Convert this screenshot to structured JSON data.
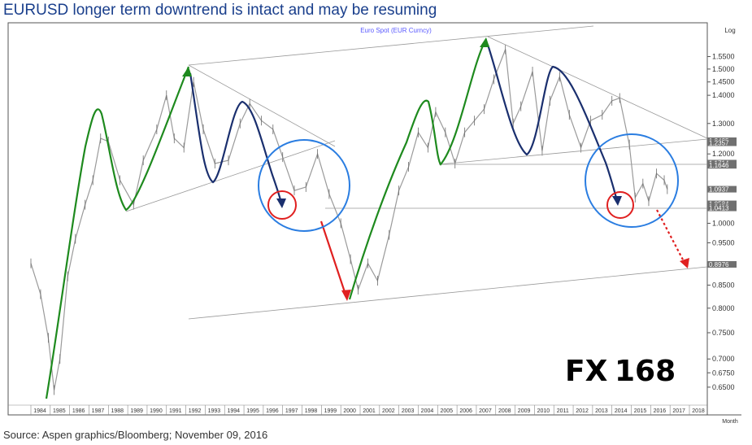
{
  "title": "EURUSD longer term downtrend is intact and may be resuming",
  "source": "Source: Aspen graphics/Bloomberg; November 09, 2016",
  "watermark": {
    "part1": "FX",
    "part2": "168",
    "color1": "#e8a07a",
    "color2": "#9aa6b2"
  },
  "chart_data": {
    "type": "line",
    "series_label": "Euro Spot (EUR Curncy)",
    "scale": "Log",
    "x_axis_label": "Month",
    "x_ticks": [
      "1984",
      "1985",
      "1986",
      "1987",
      "1988",
      "1989",
      "1990",
      "1991",
      "1992",
      "1993",
      "1994",
      "1995",
      "1996",
      "1997",
      "1998",
      "1999",
      "2000",
      "2001",
      "2002",
      "2003",
      "2004",
      "2005",
      "2006",
      "2007",
      "2008",
      "2009",
      "2010",
      "2011",
      "2012",
      "2013",
      "2014",
      "2015",
      "2016",
      "2017",
      "2018"
    ],
    "y_ticks": [
      "1.5500",
      "1.5000",
      "1.4500",
      "1.4000",
      "1.3000",
      "1.2000",
      "1.0000",
      "0.9500",
      "0.8500",
      "0.8000",
      "0.7500",
      "0.7000",
      "0.6750",
      "0.6500"
    ],
    "ylim": [
      0.628,
      1.63
    ],
    "level_labels": [
      "1.2425",
      "1.2357",
      "1.1714",
      "1.1646",
      "1.0937",
      "1.0524",
      "1.0456",
      "1.0413",
      "0.8976"
    ],
    "series": [
      {
        "values": [
          {
            "x": 1984.0,
            "y": 0.9
          },
          {
            "x": 1984.5,
            "y": 0.83
          },
          {
            "x": 1984.9,
            "y": 0.74
          },
          {
            "x": 1985.2,
            "y": 0.645
          },
          {
            "x": 1985.5,
            "y": 0.7
          },
          {
            "x": 1985.9,
            "y": 0.87
          },
          {
            "x": 1986.3,
            "y": 0.96
          },
          {
            "x": 1986.8,
            "y": 1.05
          },
          {
            "x": 1987.2,
            "y": 1.12
          },
          {
            "x": 1987.6,
            "y": 1.25
          },
          {
            "x": 1988.0,
            "y": 1.24
          },
          {
            "x": 1988.6,
            "y": 1.12
          },
          {
            "x": 1989.3,
            "y": 1.05
          },
          {
            "x": 1989.8,
            "y": 1.18
          },
          {
            "x": 1990.5,
            "y": 1.28
          },
          {
            "x": 1991.0,
            "y": 1.4
          },
          {
            "x": 1991.4,
            "y": 1.25
          },
          {
            "x": 1991.9,
            "y": 1.22
          },
          {
            "x": 1992.4,
            "y": 1.45
          },
          {
            "x": 1992.9,
            "y": 1.28
          },
          {
            "x": 1993.5,
            "y": 1.17
          },
          {
            "x": 1994.2,
            "y": 1.18
          },
          {
            "x": 1994.8,
            "y": 1.3
          },
          {
            "x": 1995.3,
            "y": 1.37
          },
          {
            "x": 1995.9,
            "y": 1.31
          },
          {
            "x": 1996.5,
            "y": 1.28
          },
          {
            "x": 1997.0,
            "y": 1.19
          },
          {
            "x": 1997.6,
            "y": 1.09
          },
          {
            "x": 1998.2,
            "y": 1.1
          },
          {
            "x": 1998.8,
            "y": 1.2
          },
          {
            "x": 1999.4,
            "y": 1.08
          },
          {
            "x": 2000.0,
            "y": 1.0
          },
          {
            "x": 2000.5,
            "y": 0.91
          },
          {
            "x": 2000.9,
            "y": 0.84
          },
          {
            "x": 2001.4,
            "y": 0.9
          },
          {
            "x": 2001.9,
            "y": 0.86
          },
          {
            "x": 2002.5,
            "y": 0.97
          },
          {
            "x": 2003.0,
            "y": 1.09
          },
          {
            "x": 2003.5,
            "y": 1.16
          },
          {
            "x": 2004.0,
            "y": 1.27
          },
          {
            "x": 2004.5,
            "y": 1.22
          },
          {
            "x": 2004.9,
            "y": 1.34
          },
          {
            "x": 2005.4,
            "y": 1.27
          },
          {
            "x": 2005.9,
            "y": 1.17
          },
          {
            "x": 2006.4,
            "y": 1.27
          },
          {
            "x": 2006.9,
            "y": 1.31
          },
          {
            "x": 2007.4,
            "y": 1.35
          },
          {
            "x": 2007.9,
            "y": 1.46
          },
          {
            "x": 2008.5,
            "y": 1.58
          },
          {
            "x": 2008.9,
            "y": 1.3
          },
          {
            "x": 2009.3,
            "y": 1.36
          },
          {
            "x": 2009.9,
            "y": 1.49
          },
          {
            "x": 2010.4,
            "y": 1.21
          },
          {
            "x": 2010.8,
            "y": 1.38
          },
          {
            "x": 2011.3,
            "y": 1.47
          },
          {
            "x": 2011.8,
            "y": 1.33
          },
          {
            "x": 2012.4,
            "y": 1.22
          },
          {
            "x": 2012.9,
            "y": 1.31
          },
          {
            "x": 2013.5,
            "y": 1.33
          },
          {
            "x": 2014.0,
            "y": 1.38
          },
          {
            "x": 2014.4,
            "y": 1.39
          },
          {
            "x": 2014.9,
            "y": 1.23
          },
          {
            "x": 2015.2,
            "y": 1.07
          },
          {
            "x": 2015.6,
            "y": 1.11
          },
          {
            "x": 2015.9,
            "y": 1.06
          },
          {
            "x": 2016.3,
            "y": 1.14
          },
          {
            "x": 2016.7,
            "y": 1.12
          },
          {
            "x": 2016.86,
            "y": 1.0937
          }
        ]
      }
    ]
  }
}
